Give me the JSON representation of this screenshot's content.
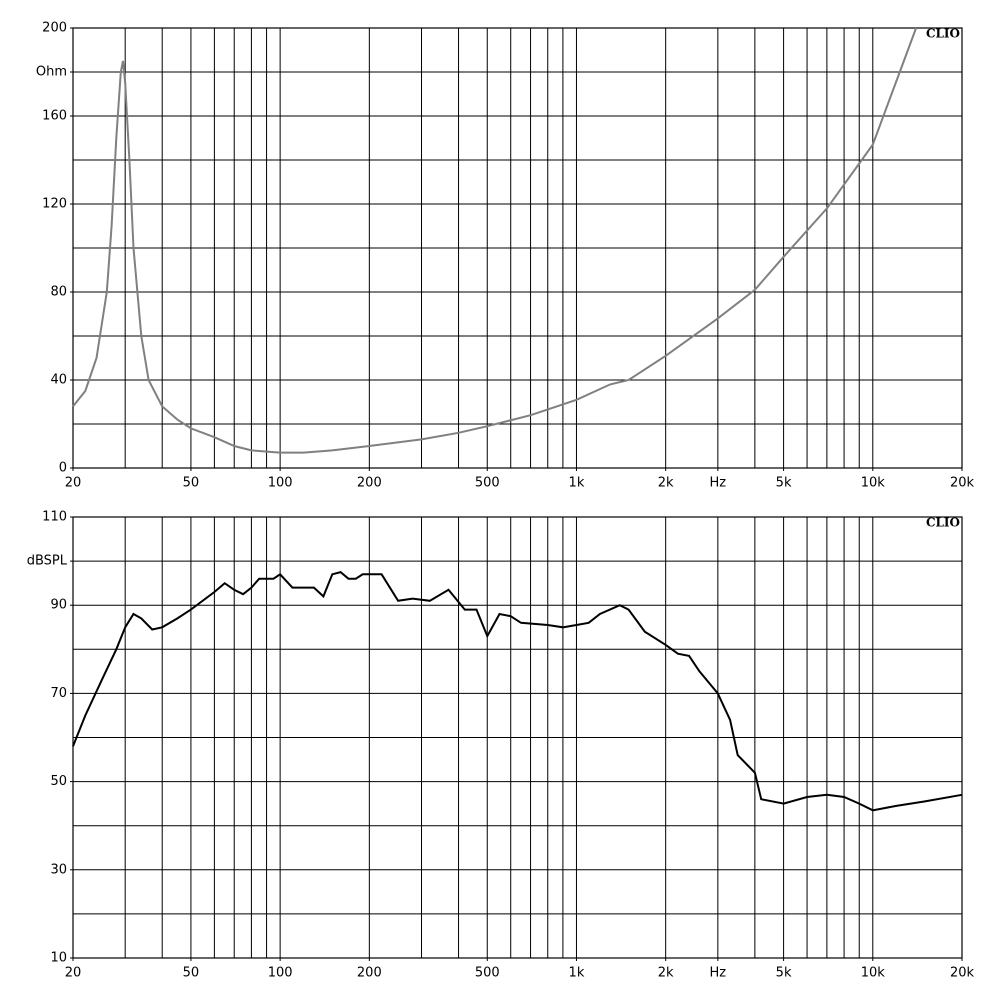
{
  "chart_data": [
    {
      "type": "line",
      "brand": "CLIO",
      "xscale": "log",
      "xlim": [
        20,
        20000
      ],
      "ylim": [
        0,
        200
      ],
      "xticks": [
        20,
        50,
        100,
        200,
        500,
        {
          "value": 1000,
          "label": "1k"
        },
        {
          "value": 2000,
          "label": "2k"
        },
        {
          "value": 3000,
          "label": "Hz"
        },
        {
          "value": 5000,
          "label": "5k"
        },
        {
          "value": 10000,
          "label": "10k"
        },
        {
          "value": 20000,
          "label": "20k"
        }
      ],
      "yticks": [
        0,
        40,
        80,
        120,
        160,
        {
          "value": 180,
          "label": "Ohm"
        },
        200
      ],
      "xgrid": [
        30,
        40,
        50,
        60,
        70,
        80,
        90,
        100,
        200,
        300,
        400,
        500,
        600,
        700,
        800,
        900,
        1000,
        2000,
        3000,
        4000,
        5000,
        6000,
        7000,
        8000,
        9000,
        10000
      ],
      "ygrid": [
        20,
        40,
        60,
        80,
        100,
        120,
        140,
        160,
        180
      ],
      "series": [
        {
          "color": "#808080",
          "x": [
            20,
            22,
            24,
            26,
            27,
            28,
            29,
            29.5,
            30,
            31,
            32,
            34,
            36,
            40,
            45,
            50,
            60,
            70,
            80,
            100,
            120,
            150,
            200,
            300,
            400,
            500,
            700,
            1000,
            1300,
            1500,
            2000,
            3000,
            4000,
            5000,
            7000,
            10000,
            14000
          ],
          "values": [
            28,
            35,
            50,
            80,
            110,
            150,
            180,
            185,
            175,
            140,
            100,
            60,
            40,
            28,
            22,
            18,
            14,
            10,
            8,
            7,
            7,
            8,
            10,
            13,
            16,
            19,
            24,
            31,
            38,
            40,
            51,
            68,
            81,
            96,
            118,
            147,
            200
          ]
        }
      ]
    },
    {
      "type": "line",
      "brand": "CLIO",
      "xscale": "log",
      "xlim": [
        20,
        20000
      ],
      "ylim": [
        10,
        110
      ],
      "xticks": [
        20,
        50,
        100,
        200,
        500,
        {
          "value": 1000,
          "label": "1k"
        },
        {
          "value": 2000,
          "label": "2k"
        },
        {
          "value": 3000,
          "label": "Hz"
        },
        {
          "value": 5000,
          "label": "5k"
        },
        {
          "value": 10000,
          "label": "10k"
        },
        {
          "value": 20000,
          "label": "20k"
        }
      ],
      "yticks": [
        10,
        30,
        50,
        70,
        90,
        {
          "value": 100,
          "label": "dBSPL"
        },
        110
      ],
      "xgrid": [
        30,
        40,
        50,
        60,
        70,
        80,
        90,
        100,
        200,
        300,
        400,
        500,
        600,
        700,
        800,
        900,
        1000,
        2000,
        3000,
        4000,
        5000,
        6000,
        7000,
        8000,
        9000,
        10000
      ],
      "ygrid": [
        20,
        30,
        40,
        50,
        60,
        70,
        80,
        90,
        100
      ],
      "series": [
        {
          "color": "#000000",
          "x": [
            20,
            22,
            25,
            28,
            30,
            32,
            34,
            37,
            40,
            45,
            50,
            60,
            65,
            70,
            75,
            80,
            85,
            95,
            100,
            110,
            130,
            140,
            150,
            160,
            170,
            180,
            190,
            220,
            250,
            280,
            320,
            370,
            420,
            460,
            500,
            550,
            600,
            650,
            800,
            900,
            1000,
            1100,
            1200,
            1400,
            1500,
            1700,
            2000,
            2200,
            2400,
            2600,
            3000,
            3300,
            3500,
            4000,
            4200,
            5000,
            6000,
            7000,
            8000,
            9000,
            10000,
            12000,
            15000,
            20000
          ],
          "values": [
            58,
            65,
            73,
            80,
            85,
            88,
            87,
            84.5,
            85,
            87,
            89,
            93,
            95,
            93.5,
            92.5,
            94,
            96,
            96,
            97,
            94,
            94,
            92,
            97,
            97.5,
            96,
            96,
            97,
            97,
            91,
            91.5,
            91,
            93.5,
            89,
            89,
            83,
            88,
            87.5,
            86,
            85.5,
            85,
            85.5,
            86,
            88,
            90,
            89,
            84,
            81,
            79,
            78.5,
            75,
            70,
            64,
            56,
            52,
            46,
            45,
            46.5,
            47,
            46.5,
            45,
            43.5,
            44.5,
            45.5,
            47
          ]
        }
      ]
    }
  ]
}
